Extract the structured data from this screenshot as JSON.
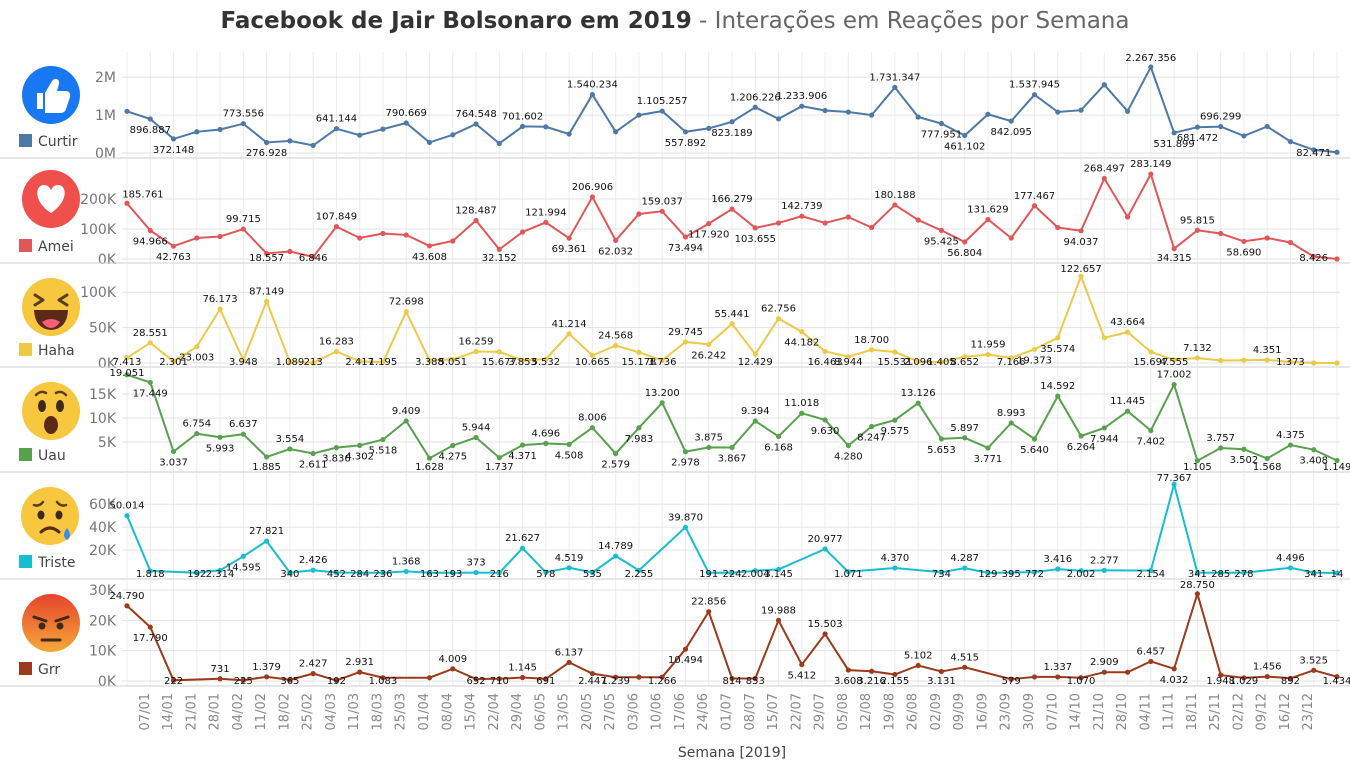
{
  "title": {
    "bold": "Facebook de Jair Bolsonaro em 2019",
    "light": " - Interações em Reações por Semana"
  },
  "chart_data": {
    "type": "line",
    "xlabel": "Semana [2019]",
    "x_labels": [
      "07/01",
      "14/01",
      "21/01",
      "28/01",
      "04/02",
      "11/02",
      "18/02",
      "25/02",
      "04/03",
      "11/03",
      "18/03",
      "25/03",
      "01/04",
      "08/04",
      "15/04",
      "22/04",
      "29/04",
      "06/05",
      "13/05",
      "20/05",
      "27/05",
      "03/06",
      "10/06",
      "17/06",
      "24/06",
      "01/07",
      "08/07",
      "15/07",
      "22/07",
      "29/07",
      "05/08",
      "12/08",
      "19/08",
      "26/08",
      "02/09",
      "09/09",
      "16/09",
      "23/09",
      "30/09",
      "07/10",
      "14/10",
      "21/10",
      "28/10",
      "04/11",
      "11/11",
      "18/11",
      "25/11",
      "02/12",
      "09/12",
      "16/12",
      "23/12"
    ],
    "x_positions": [
      0,
      1,
      2,
      3,
      4,
      5,
      6,
      7,
      8,
      9,
      10,
      11,
      12,
      13,
      14,
      15,
      16,
      17,
      18,
      19,
      20,
      21,
      22,
      23,
      24,
      25,
      26,
      27,
      28,
      29,
      30,
      31,
      32,
      33,
      34,
      35,
      36,
      37,
      38,
      39,
      40,
      41,
      42,
      43,
      44,
      45,
      46,
      47,
      48,
      49,
      50,
      51,
      52
    ],
    "tick_indices": [
      1,
      2,
      3,
      4,
      5,
      6,
      7,
      8,
      9,
      10,
      11,
      12,
      13,
      14,
      15,
      16,
      17,
      18,
      19,
      20,
      21,
      22,
      23,
      24,
      25,
      26,
      27,
      28,
      29,
      30,
      31,
      32,
      33,
      34,
      35,
      36,
      37,
      38,
      39,
      40,
      41,
      42,
      43,
      44,
      45,
      46,
      47,
      48,
      49,
      50,
      51
    ],
    "series": [
      {
        "name": "Curtir",
        "color": "#4e79a7",
        "ylim": [
          0,
          2400000
        ],
        "yticks": [
          {
            "v": 0,
            "t": "0M"
          },
          {
            "v": 1000000,
            "t": "1M"
          },
          {
            "v": 2000000,
            "t": "2M"
          }
        ],
        "values": [
          1100000,
          896887,
          372148,
          560000,
          620000,
          773556,
          276928,
          320000,
          200000,
          641144,
          470000,
          630000,
          790669,
          280000,
          480000,
          764548,
          250000,
          701602,
          690000,
          500000,
          1540234,
          560000,
          1000000,
          1105257,
          557892,
          650000,
          823189,
          1206226,
          900000,
          1233906,
          1120000,
          1080000,
          1000000,
          1731347,
          950000,
          777951,
          461102,
          1020000,
          842095,
          1537945,
          1080000,
          1130000,
          1800000,
          1100000,
          2267356,
          531899,
          681472,
          696299,
          450000,
          700000,
          300000,
          82471,
          20000
        ],
        "labels": [
          null,
          "896.887",
          "372.148",
          null,
          null,
          "773.556",
          "276.928",
          null,
          null,
          "641.144",
          null,
          null,
          "790.669",
          null,
          null,
          "764.548",
          null,
          "701.602",
          null,
          null,
          "1.540.234",
          null,
          null,
          "1.105.257",
          "557.892",
          null,
          "823.189",
          "1.206.226",
          null,
          "1.233.906",
          null,
          null,
          null,
          "1.731.347",
          null,
          "777.951",
          "461.102",
          null,
          "842.095",
          "1.537.945",
          null,
          null,
          null,
          null,
          "2.267.356",
          "531.899",
          "681.472",
          "696.299",
          null,
          null,
          null,
          "82.471",
          null
        ]
      },
      {
        "name": "Amei",
        "color": "#e15759",
        "ylim": [
          0,
          290000
        ],
        "yticks": [
          {
            "v": 0,
            "t": "0K"
          },
          {
            "v": 100000,
            "t": "100K"
          },
          {
            "v": 200000,
            "t": "200K"
          }
        ],
        "values": [
          185761,
          94966,
          42763,
          70000,
          75000,
          99715,
          18557,
          25000,
          6846,
          107849,
          70000,
          85000,
          80000,
          43608,
          60000,
          128487,
          32152,
          90000,
          121994,
          69361,
          206906,
          62032,
          150000,
          159037,
          73494,
          117920,
          166279,
          103655,
          120000,
          142739,
          120000,
          140000,
          105000,
          180188,
          130000,
          95425,
          56804,
          131629,
          70000,
          177467,
          105000,
          94037,
          268497,
          140000,
          283149,
          34315,
          95815,
          85000,
          58690,
          70000,
          55000,
          8426,
          0
        ],
        "labels": [
          null,
          "94.966",
          "42.763",
          null,
          null,
          "99.715",
          "18.557",
          null,
          "6.846",
          "107.849",
          null,
          null,
          null,
          "43.608",
          null,
          "128.487",
          "32.152",
          null,
          "121.994",
          "69.361",
          "206.906",
          "62.032",
          null,
          "159.037",
          "73.494",
          "117.920",
          "166.279",
          "103.655",
          null,
          "142.739",
          null,
          null,
          null,
          "180.188",
          null,
          "95.425",
          "56.804",
          "131.629",
          null,
          "177.467",
          null,
          "94.037",
          "268.497",
          null,
          "283.149",
          "34.315",
          "95.815",
          null,
          "58.690",
          null,
          null,
          "8.426",
          null
        ],
        "extra_labels": [
          {
            "i": 0,
            "t": "185.761"
          }
        ]
      },
      {
        "name": "Haha",
        "color": "#edc948",
        "ylim": [
          0,
          130000
        ],
        "yticks": [
          {
            "v": 0,
            "t": "0K"
          },
          {
            "v": 50000,
            "t": "50K"
          },
          {
            "v": 100000,
            "t": "100K"
          }
        ],
        "values": [
          7413,
          28551,
          2301,
          23003,
          76173,
          3948,
          87149,
          1089,
          213,
          16283,
          2417,
          1195,
          72698,
          3388,
          5051,
          16259,
          15677,
          3853,
          5532,
          41214,
          10665,
          24568,
          15178,
          3736,
          29745,
          26242,
          55441,
          12429,
          62756,
          44182,
          16463,
          8944,
          18700,
          15531,
          2096,
          1405,
          8652,
          11959,
          7166,
          19373,
          35574,
          122657,
          35574,
          43664,
          15697,
          4555,
          7132,
          3502,
          4000,
          4351,
          1373,
          0,
          0
        ],
        "labels": [
          "7.413",
          "28.551",
          "2.301",
          "23.003",
          "76.173",
          "3.948",
          "87.149",
          "1.089",
          "213",
          "16.283",
          "2.417",
          "1.195",
          "72.698",
          "3.388",
          "5.051",
          "16.259",
          "15.677",
          "3.853",
          "5.532",
          "41.214",
          "10.665",
          "24.568",
          "15.178",
          "3.736",
          "29.745",
          "26.242",
          "55.441",
          "12.429",
          "62.756",
          "44.182",
          "16.463",
          "8.944",
          "18.700",
          "15.531",
          "2.096",
          "1.405",
          "8.652",
          "11.959",
          "7.166",
          "19.373",
          "35.574",
          "122.657",
          null,
          "43.664",
          "15.697",
          "4.555",
          "7.132",
          null,
          null,
          "4.351",
          "1.373",
          null,
          null
        ]
      },
      {
        "name": "Uau",
        "color": "#59a14f",
        "ylim": [
          0,
          19000
        ],
        "yticks": [
          {
            "v": 5000,
            "t": "5K"
          },
          {
            "v": 10000,
            "t": "10K"
          },
          {
            "v": 15000,
            "t": "15K"
          }
        ],
        "values": [
          19051,
          17449,
          3037,
          6754,
          5993,
          6637,
          1885,
          3554,
          2611,
          3836,
          4302,
          5518,
          9409,
          1628,
          4275,
          5944,
          1737,
          4371,
          4696,
          4508,
          8006,
          2579,
          7983,
          13200,
          2978,
          3875,
          3867,
          9394,
          6168,
          11018,
          9630,
          4280,
          8247,
          9575,
          13126,
          5653,
          5897,
          3771,
          8993,
          5640,
          14592,
          6264,
          7944,
          11445,
          7402,
          17002,
          1105,
          3757,
          3502,
          1568,
          4375,
          3408,
          1149
        ],
        "labels": [
          "19.051",
          "17.449",
          "3.037",
          "6.754",
          "5.993",
          "6.637",
          "1.885",
          "3.554",
          "2.611",
          "3.836",
          "4.302",
          "5.518",
          "9.409",
          "1.628",
          "4.275",
          "5.944",
          "1.737",
          "4.371",
          "4.696",
          "4.508",
          "8.006",
          "2.579",
          "7.983",
          "13.200",
          "2.978",
          "3.875",
          "3.867",
          "9.394",
          "6.168",
          "11.018",
          "9.630",
          "4.280",
          "8.247",
          "9.575",
          "13.126",
          "5.653",
          "5.897",
          "3.771",
          "8.993",
          "5.640",
          "14.592",
          "6.264",
          "7.944",
          "11.445",
          "7.402",
          "17.002",
          "1.105",
          "3.757",
          "3.502",
          "1.568",
          "4.375",
          "3.408",
          "1.149"
        ]
      },
      {
        "name": "Triste",
        "color": "#17becf",
        "ylim": [
          0,
          82000
        ],
        "yticks": [
          {
            "v": 20000,
            "t": "20K"
          },
          {
            "v": 40000,
            "t": "40K"
          },
          {
            "v": 60000,
            "t": "60K"
          }
        ],
        "values": [
          50014,
          1818,
          192,
          2314,
          14595,
          27821,
          340,
          2426,
          452,
          284,
          236,
          1368,
          163,
          193,
          373,
          216,
          21627,
          578,
          4519,
          535,
          14789,
          2255,
          39870,
          191,
          224,
          2004,
          3145,
          20977,
          1071,
          4370,
          734,
          4287,
          129,
          395,
          772,
          3416,
          2002,
          2277,
          2154,
          77367,
          341,
          285,
          278,
          4496,
          341,
          14,
          0,
          0,
          0,
          0,
          0,
          0,
          0
        ],
        "labels": [
          "50.014",
          "1.818",
          "192",
          "2.314",
          "14.595",
          "27.821",
          "340",
          "2.426",
          "452",
          "284",
          "236",
          "1.368",
          "163",
          "193",
          "373",
          "216",
          "21.627",
          "578",
          "4.519",
          "535",
          "14.789",
          "2.255",
          "39.870",
          "191",
          "224",
          "2.004",
          "3.145",
          "20.977",
          "1.071",
          "4.370",
          "734",
          "4.287",
          "129",
          "395",
          "772",
          "3.416",
          "2.002",
          "2.277",
          "2.154",
          "77.367",
          "341",
          "285",
          "278",
          "4.496",
          "341",
          "14",
          null,
          null,
          null,
          null,
          null,
          null,
          null
        ],
        "positions": [
          0,
          1,
          3,
          4,
          5,
          6,
          7,
          8,
          9,
          10,
          11,
          12,
          13,
          14,
          15,
          16,
          17,
          18,
          19,
          20,
          21,
          22,
          24,
          25,
          26,
          27,
          28,
          30,
          31,
          33,
          35,
          36,
          37,
          38,
          39,
          40,
          41,
          42,
          44,
          45,
          46,
          47,
          48,
          50,
          51,
          52
        ]
      },
      {
        "name": "Grr",
        "color": "#9c3a1c",
        "ylim": [
          0,
          31000
        ],
        "yticks": [
          {
            "v": 0,
            "t": "0K"
          },
          {
            "v": 10000,
            "t": "10K"
          },
          {
            "v": 20000,
            "t": "20K"
          },
          {
            "v": 30000,
            "t": "30K"
          }
        ],
        "values": [
          24790,
          17790,
          222,
          731,
          225,
          1379,
          365,
          2427,
          192,
          2931,
          1083,
          1083,
          4009,
          652,
          710,
          1145,
          691,
          6137,
          2447,
          1239,
          1266,
          1266,
          10494,
          22856,
          814,
          853,
          19988,
          5412,
          15503,
          3608,
          3216,
          2155,
          5102,
          3131,
          4515,
          579,
          1337,
          1337,
          1070,
          2909,
          2909,
          6457,
          4032,
          28750,
          1948,
          1029,
          1456,
          892,
          3525,
          1434,
          0,
          0,
          0
        ],
        "labels": [
          "24.790",
          "17.790",
          "222",
          "731",
          "225",
          "1.379",
          "365",
          "2.427",
          "192",
          "2.931",
          "1.083",
          null,
          "4.009",
          "652",
          "710",
          "1.145",
          "691",
          "6.137",
          "2.447",
          "1.239",
          null,
          "1.266",
          "10.494",
          "22.856",
          "814",
          "853",
          "19.988",
          "5.412",
          "15.503",
          "3.608",
          "3.216",
          "2.155",
          "5.102",
          "3.131",
          "4.515",
          "579",
          null,
          "1.337",
          "1.070",
          "2.909",
          null,
          "6.457",
          "4.032",
          "28.750",
          "1.948",
          "1.029",
          "1.456",
          "892",
          "3.525",
          "1.434",
          null,
          null,
          null
        ],
        "positions": [
          0,
          1,
          2,
          4,
          5,
          6,
          7,
          8,
          9,
          10,
          11,
          13,
          14,
          15,
          16,
          17,
          18,
          19,
          20,
          21,
          22,
          23,
          24,
          25,
          26,
          27,
          28,
          29,
          30,
          31,
          32,
          33,
          34,
          35,
          36,
          38,
          39,
          40,
          41,
          42,
          43,
          44,
          45,
          46,
          47,
          48,
          49,
          50,
          51,
          52
        ]
      }
    ]
  }
}
